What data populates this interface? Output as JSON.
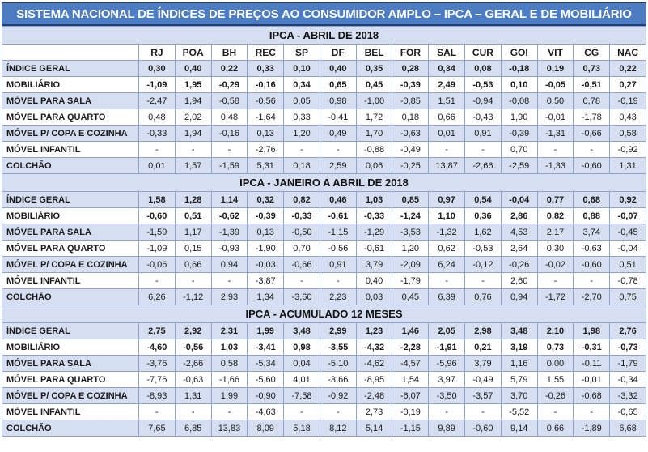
{
  "title": "SISTEMA NACIONAL DE ÍNDICES DE PREÇOS AO CONSUMIDOR AMPLO – IPCA – GERAL E DE MOBILIÁRIO",
  "colors": {
    "title_bg": "#4c7cc2",
    "title_text": "#ffffff",
    "stripe_row_bg": "#d5dff1",
    "section_header_bg": "#d5dff1",
    "cell_border": "#8fa3c9",
    "title_border": "#1f3e76",
    "text": "#1a1a1a"
  },
  "chart_data": {
    "type": "table",
    "title": "SISTEMA NACIONAL DE ÍNDICES DE PREÇOS AO CONSUMIDOR AMPLO – IPCA – GERAL E DE MOBILIÁRIO",
    "columns": [
      "RJ",
      "POA",
      "BH",
      "REC",
      "SP",
      "DF",
      "BEL",
      "FOR",
      "SAL",
      "CUR",
      "GOI",
      "VIT",
      "CG",
      "NAC"
    ],
    "sections": [
      {
        "name": "IPCA - ABRIL DE 2018",
        "rows": [
          {
            "label": "ÍNDICE GERAL",
            "values": [
              "0,30",
              "0,40",
              "0,22",
              "0,33",
              "0,10",
              "0,40",
              "0,35",
              "0,28",
              "0,34",
              "0,08",
              "-0,18",
              "0,19",
              "0,73",
              "0,22"
            ]
          },
          {
            "label": "MOBILIÁRIO",
            "values": [
              "-1,09",
              "1,95",
              "-0,29",
              "-0,16",
              "0,34",
              "0,65",
              "0,45",
              "-0,39",
              "2,49",
              "-0,53",
              "0,10",
              "-0,05",
              "-0,51",
              "0,27"
            ]
          },
          {
            "label": "MÓVEL PARA SALA",
            "values": [
              "-2,47",
              "1,94",
              "-0,58",
              "-0,56",
              "0,05",
              "0,98",
              "-1,00",
              "-0,85",
              "1,51",
              "-0,94",
              "-0,08",
              "0,50",
              "0,78",
              "-0,19"
            ]
          },
          {
            "label": "MÓVEL PARA QUARTO",
            "values": [
              "0,48",
              "2,02",
              "0,48",
              "-1,64",
              "0,33",
              "-0,41",
              "1,72",
              "0,18",
              "0,66",
              "-0,43",
              "1,90",
              "-0,01",
              "-1,78",
              "0,43"
            ]
          },
          {
            "label": "MÓVEL P/ COPA E COZINHA",
            "values": [
              "-0,33",
              "1,94",
              "-0,16",
              "0,13",
              "1,20",
              "0,49",
              "1,70",
              "-0,63",
              "0,01",
              "0,91",
              "-0,39",
              "-1,31",
              "-0,66",
              "0,58"
            ]
          },
          {
            "label": "MÓVEL INFANTIL",
            "values": [
              "-",
              "-",
              "-",
              "-2,76",
              "-",
              "-",
              "-0,88",
              "-0,49",
              "-",
              "-",
              "0,70",
              "-",
              "-",
              "-0,92"
            ]
          },
          {
            "label": "COLCHÃO",
            "values": [
              "0,01",
              "1,57",
              "-1,59",
              "5,31",
              "0,18",
              "2,59",
              "0,06",
              "-0,25",
              "13,87",
              "-2,66",
              "-2,59",
              "-1,33",
              "-0,60",
              "1,31"
            ]
          }
        ]
      },
      {
        "name": "IPCA - JANEIRO A ABRIL DE 2018",
        "rows": [
          {
            "label": "ÍNDICE GERAL",
            "values": [
              "1,58",
              "1,28",
              "1,14",
              "0,32",
              "0,82",
              "0,46",
              "1,03",
              "0,85",
              "0,97",
              "0,54",
              "-0,04",
              "0,77",
              "0,68",
              "0,92"
            ]
          },
          {
            "label": "MOBILIÁRIO",
            "values": [
              "-0,60",
              "0,51",
              "-0,62",
              "-0,39",
              "-0,33",
              "-0,61",
              "-0,33",
              "-1,24",
              "1,10",
              "0,36",
              "2,86",
              "0,82",
              "0,88",
              "-0,07"
            ]
          },
          {
            "label": "MÓVEL PARA SALA",
            "values": [
              "-1,59",
              "1,17",
              "-1,39",
              "0,13",
              "-0,50",
              "-1,15",
              "-1,29",
              "-3,53",
              "-1,32",
              "1,62",
              "4,53",
              "2,17",
              "3,74",
              "-0,45"
            ]
          },
          {
            "label": "MÓVEL PARA QUARTO",
            "values": [
              "-1,09",
              "0,15",
              "-0,93",
              "-1,90",
              "0,70",
              "-0,56",
              "-0,61",
              "1,20",
              "0,62",
              "-0,53",
              "2,64",
              "0,30",
              "-0,63",
              "-0,04"
            ]
          },
          {
            "label": "MÓVEL P/ COPA E COZINHA",
            "values": [
              "-0,06",
              "0,66",
              "0,94",
              "-0,03",
              "-0,66",
              "0,91",
              "3,79",
              "-2,09",
              "6,24",
              "-0,12",
              "-0,26",
              "-0,02",
              "-0,60",
              "0,51"
            ]
          },
          {
            "label": "MÓVEL INFANTIL",
            "values": [
              "-",
              "-",
              "-",
              "-3,87",
              "-",
              "-",
              "0,40",
              "-1,79",
              "-",
              "-",
              "2,60",
              "-",
              "-",
              "-0,78"
            ]
          },
          {
            "label": "COLCHÃO",
            "values": [
              "6,26",
              "-1,12",
              "2,93",
              "1,34",
              "-3,60",
              "2,23",
              "0,03",
              "0,45",
              "6,39",
              "0,76",
              "0,94",
              "-1,72",
              "-2,70",
              "0,75"
            ]
          }
        ]
      },
      {
        "name": "IPCA - ACUMULADO 12 MESES",
        "rows": [
          {
            "label": "ÍNDICE GERAL",
            "values": [
              "2,75",
              "2,92",
              "2,31",
              "1,99",
              "3,48",
              "2,99",
              "1,23",
              "1,46",
              "2,05",
              "2,98",
              "3,48",
              "2,10",
              "1,98",
              "2,76"
            ]
          },
          {
            "label": "MOBILIÁRIO",
            "values": [
              "-4,60",
              "-0,56",
              "1,03",
              "-3,41",
              "0,98",
              "-3,55",
              "-4,32",
              "-2,28",
              "-1,91",
              "0,21",
              "3,19",
              "0,73",
              "-0,31",
              "-0,73"
            ]
          },
          {
            "label": "MÓVEL PARA SALA",
            "values": [
              "-3,76",
              "-2,66",
              "0,58",
              "-5,34",
              "0,04",
              "-5,10",
              "-4,62",
              "-4,57",
              "-5,96",
              "3,79",
              "1,16",
              "0,00",
              "-0,11",
              "-1,79"
            ]
          },
          {
            "label": "MÓVEL PARA QUARTO",
            "values": [
              "-7,76",
              "-0,63",
              "-1,66",
              "-5,60",
              "4,01",
              "-3,66",
              "-8,95",
              "1,54",
              "3,97",
              "-0,49",
              "5,79",
              "1,55",
              "-0,01",
              "-0,34"
            ]
          },
          {
            "label": "MÓVEL P/ COPA E COZINHA",
            "values": [
              "-8,93",
              "1,31",
              "1,99",
              "-0,90",
              "-7,58",
              "-0,92",
              "-2,48",
              "-6,07",
              "-3,50",
              "-3,57",
              "3,70",
              "-0,26",
              "-0,68",
              "-3,32"
            ]
          },
          {
            "label": "MÓVEL INFANTIL",
            "values": [
              "-",
              "-",
              "-",
              "-4,63",
              "-",
              "-",
              "2,73",
              "-0,19",
              "-",
              "-",
              "-5,52",
              "-",
              "-",
              "-0,65"
            ]
          },
          {
            "label": "COLCHÃO",
            "values": [
              "7,65",
              "6,85",
              "13,83",
              "8,09",
              "5,18",
              "8,12",
              "5,14",
              "-1,15",
              "9,89",
              "-0,60",
              "9,14",
              "0,66",
              "-1,89",
              "6,68"
            ]
          }
        ]
      }
    ]
  }
}
